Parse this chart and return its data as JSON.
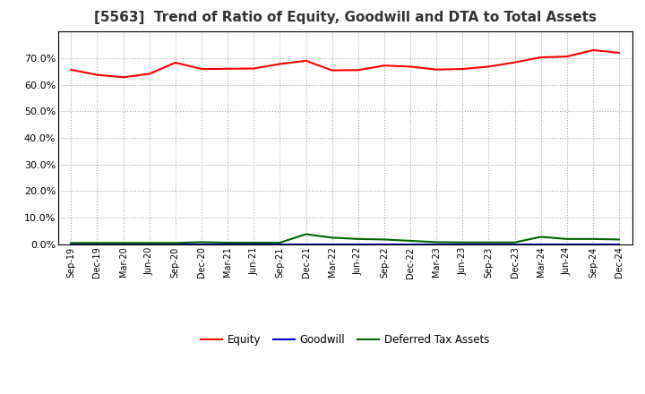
{
  "title": "[5563]  Trend of Ratio of Equity, Goodwill and DTA to Total Assets",
  "x_labels": [
    "Sep-19",
    "Dec-19",
    "Mar-20",
    "Jun-20",
    "Sep-20",
    "Dec-20",
    "Mar-21",
    "Jun-21",
    "Sep-21",
    "Dec-21",
    "Mar-22",
    "Jun-22",
    "Sep-22",
    "Dec-22",
    "Mar-23",
    "Jun-23",
    "Sep-23",
    "Dec-23",
    "Mar-24",
    "Jun-24",
    "Sep-24",
    "Dec-24"
  ],
  "equity": [
    0.656,
    0.637,
    0.628,
    0.641,
    0.683,
    0.659,
    0.66,
    0.661,
    0.678,
    0.69,
    0.654,
    0.655,
    0.672,
    0.668,
    0.657,
    0.659,
    0.668,
    0.684,
    0.703,
    0.706,
    0.73,
    0.72
  ],
  "goodwill": [
    0.001,
    0.001,
    0.001,
    0.001,
    0.001,
    0.001,
    0.001,
    0.001,
    0.001,
    0.001,
    0.001,
    0.001,
    0.001,
    0.001,
    0.001,
    0.001,
    0.001,
    0.001,
    0.001,
    0.001,
    0.001,
    0.001
  ],
  "dta": [
    0.005,
    0.005,
    0.005,
    0.005,
    0.005,
    0.008,
    0.006,
    0.006,
    0.006,
    0.038,
    0.025,
    0.02,
    0.018,
    0.013,
    0.008,
    0.007,
    0.007,
    0.007,
    0.028,
    0.02,
    0.02,
    0.018
  ],
  "equity_color": "#ff0000",
  "goodwill_color": "#0000cc",
  "dta_color": "#006600",
  "background_color": "#ffffff",
  "grid_color": "#aaaaaa",
  "ylim": [
    0.0,
    0.8
  ],
  "yticks": [
    0.0,
    0.1,
    0.2,
    0.3,
    0.4,
    0.5,
    0.6,
    0.7
  ],
  "title_fontsize": 11,
  "legend_labels": [
    "Equity",
    "Goodwill",
    "Deferred Tax Assets"
  ]
}
